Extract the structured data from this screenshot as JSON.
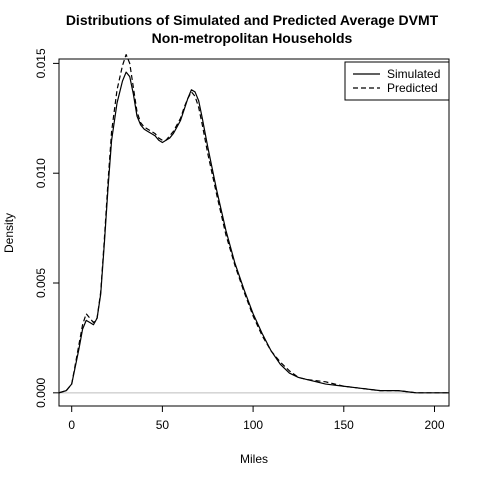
{
  "chart_data": {
    "type": "line",
    "title": "Distributions of Simulated and Predicted Average DVMT",
    "subtitle": "Non-metropolitan Households",
    "xlabel": "Miles",
    "ylabel": "Density",
    "xlim": [
      -7,
      208
    ],
    "ylim": [
      -0.0006,
      0.0152
    ],
    "x_ticks": [
      0,
      50,
      100,
      150,
      200
    ],
    "x_tick_labels": [
      "0",
      "50",
      "100",
      "150",
      "200"
    ],
    "y_ticks": [
      0.0,
      0.005,
      0.01,
      0.015
    ],
    "y_tick_labels": [
      "0.000",
      "0.005",
      "0.010",
      "0.015"
    ],
    "baseline": 0,
    "grid": false,
    "legend": {
      "position": "top-right"
    },
    "series": [
      {
        "name": "Simulated",
        "line_style": "solid",
        "color": "#000000",
        "x": [
          -7,
          -3,
          0,
          2,
          4,
          6,
          8,
          10,
          12,
          14,
          16,
          18,
          20,
          22,
          25,
          28,
          30,
          32,
          34,
          36,
          38,
          40,
          42,
          44,
          46,
          48,
          50,
          52,
          54,
          56,
          58,
          60,
          62,
          64,
          66,
          68,
          70,
          72,
          75,
          80,
          85,
          90,
          95,
          100,
          105,
          110,
          115,
          120,
          125,
          130,
          140,
          150,
          160,
          170,
          180,
          190,
          200,
          208
        ],
        "y": [
          0.0,
          0.0001,
          0.0004,
          0.0012,
          0.002,
          0.0029,
          0.0033,
          0.0032,
          0.0031,
          0.0034,
          0.0045,
          0.0068,
          0.0093,
          0.0115,
          0.0132,
          0.0142,
          0.0146,
          0.0144,
          0.0136,
          0.0126,
          0.0122,
          0.012,
          0.0119,
          0.0118,
          0.0117,
          0.0115,
          0.0114,
          0.0115,
          0.0116,
          0.0118,
          0.0121,
          0.0124,
          0.0129,
          0.0134,
          0.0138,
          0.0137,
          0.0133,
          0.0125,
          0.0112,
          0.0092,
          0.0074,
          0.0059,
          0.0047,
          0.0036,
          0.0027,
          0.0019,
          0.0013,
          0.0009,
          0.0007,
          0.0006,
          0.0004,
          0.0003,
          0.0002,
          0.0001,
          0.0001,
          0.0,
          0.0,
          0.0
        ]
      },
      {
        "name": "Predicted",
        "line_style": "dashed",
        "color": "#000000",
        "x": [
          -7,
          -3,
          0,
          2,
          4,
          6,
          8,
          10,
          12,
          14,
          16,
          18,
          20,
          22,
          25,
          28,
          30,
          32,
          34,
          36,
          38,
          40,
          42,
          44,
          46,
          48,
          50,
          52,
          54,
          56,
          58,
          60,
          62,
          64,
          66,
          68,
          70,
          72,
          75,
          80,
          85,
          90,
          95,
          100,
          105,
          110,
          115,
          120,
          125,
          130,
          140,
          150,
          160,
          170,
          180,
          190,
          200,
          208
        ],
        "y": [
          0.0,
          0.0001,
          0.0004,
          0.0013,
          0.0022,
          0.0031,
          0.0036,
          0.0034,
          0.0032,
          0.0034,
          0.0046,
          0.007,
          0.0096,
          0.0119,
          0.0138,
          0.0149,
          0.0154,
          0.015,
          0.0139,
          0.0128,
          0.0123,
          0.0121,
          0.012,
          0.0119,
          0.0118,
          0.0116,
          0.0115,
          0.0115,
          0.0117,
          0.0119,
          0.0122,
          0.0125,
          0.013,
          0.0134,
          0.0137,
          0.0135,
          0.013,
          0.0122,
          0.0109,
          0.009,
          0.0072,
          0.0058,
          0.0046,
          0.0035,
          0.0026,
          0.0019,
          0.0014,
          0.001,
          0.0007,
          0.0006,
          0.0005,
          0.0003,
          0.0002,
          0.0001,
          0.0001,
          0.0,
          0.0,
          0.0
        ]
      }
    ]
  }
}
